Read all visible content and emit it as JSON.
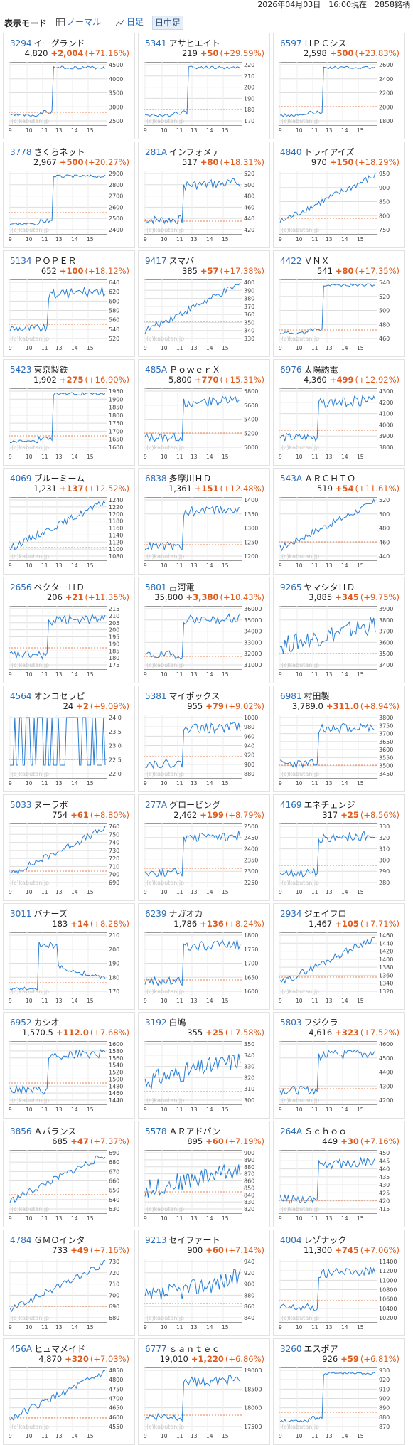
{
  "header": {
    "updated_text": "2026年04月03日　16:00現在　2858銘柄"
  },
  "toolbar": {
    "mode_label": "表示モード",
    "normal_label": "ノーマル",
    "daily_label": "日足",
    "intraday_label": "日中足"
  },
  "chart_watermark": "(c)kabutan.jp",
  "chart_time_labels": [
    "9",
    "10",
    "11",
    "13",
    "14",
    "15"
  ],
  "stocks": [
    {
      "code": "3294",
      "name": "イーグランド",
      "price": "4,820",
      "change": "+2,004",
      "pct": "(+71.16%)",
      "ticks": [
        "4500",
        "4000",
        "3500",
        "3000",
        "2500"
      ],
      "shape": "jump"
    },
    {
      "code": "5341",
      "name": "アサヒエイト",
      "price": "219",
      "change": "+50",
      "pct": "(+29.59%)",
      "ticks": [
        "220",
        "210",
        "200",
        "190",
        "180",
        "170"
      ],
      "shape": "jump"
    },
    {
      "code": "6597",
      "name": "ＨＰＣシス",
      "price": "2,598",
      "change": "+500",
      "pct": "(+23.83%)",
      "ticks": [
        "2600",
        "2400",
        "2200",
        "2000",
        "1800"
      ],
      "shape": "jump"
    },
    {
      "code": "3778",
      "name": "さくらネット",
      "price": "2,967",
      "change": "+500",
      "pct": "(+20.27%)",
      "ticks": [
        "2900",
        "2800",
        "2700",
        "2600",
        "2500",
        "2400"
      ],
      "shape": "jump"
    },
    {
      "code": "281A",
      "name": "インフォメテ",
      "price": "517",
      "change": "+80",
      "pct": "(+18.31%)",
      "ticks": [
        "520",
        "500",
        "480",
        "460",
        "440",
        "420"
      ],
      "shape": "rise"
    },
    {
      "code": "4840",
      "name": "トライアイズ",
      "price": "970",
      "change": "+150",
      "pct": "(+18.29%)",
      "ticks": [
        "950",
        "900",
        "850",
        "800",
        "750"
      ],
      "shape": "climb"
    },
    {
      "code": "5134",
      "name": "ＰＯＰＥＲ",
      "price": "652",
      "change": "+100",
      "pct": "(+18.12%)",
      "ticks": [
        "640",
        "620",
        "600",
        "580",
        "560",
        "540",
        "520"
      ],
      "shape": "rise"
    },
    {
      "code": "9417",
      "name": "スマバ",
      "price": "385",
      "change": "+57",
      "pct": "(+17.38%)",
      "ticks": [
        "400",
        "390",
        "380",
        "370",
        "360",
        "350",
        "340",
        "330"
      ],
      "shape": "climb"
    },
    {
      "code": "4422",
      "name": "ＶＮＸ",
      "price": "541",
      "change": "+80",
      "pct": "(+17.35%)",
      "ticks": [
        "540",
        "520",
        "500",
        "480",
        "460"
      ],
      "shape": "jump"
    },
    {
      "code": "5423",
      "name": "東京製鉄",
      "price": "1,902",
      "change": "+275",
      "pct": "(+16.90%)",
      "ticks": [
        "1950",
        "1900",
        "1850",
        "1800",
        "1750",
        "1700",
        "1650",
        "1600"
      ],
      "shape": "jump"
    },
    {
      "code": "485A",
      "name": "ＰｏｗｅｒＸ",
      "price": "5,800",
      "change": "+770",
      "pct": "(+15.31%)",
      "ticks": [
        "5800",
        "5600",
        "5400",
        "5200",
        "5000"
      ],
      "shape": "rise"
    },
    {
      "code": "6976",
      "name": "太陽誘電",
      "price": "4,360",
      "change": "+499",
      "pct": "(+12.92%)",
      "ticks": [
        "4300",
        "4200",
        "4100",
        "4000",
        "3900",
        "3800"
      ],
      "shape": "rise"
    },
    {
      "code": "4069",
      "name": "ブルーミーム",
      "price": "1,231",
      "change": "+137",
      "pct": "(+12.52%)",
      "ticks": [
        "1240",
        "1220",
        "1200",
        "1180",
        "1160",
        "1140",
        "1120",
        "1100",
        "1080"
      ],
      "shape": "climb"
    },
    {
      "code": "6838",
      "name": "多摩川ＨＤ",
      "price": "1,361",
      "change": "+151",
      "pct": "(+12.48%)",
      "ticks": [
        "1400",
        "1350",
        "1300",
        "1250",
        "1200"
      ],
      "shape": "rise"
    },
    {
      "code": "543A",
      "name": "ＡＲＣＨＩＯ",
      "price": "519",
      "change": "+54",
      "pct": "(+11.61%)",
      "ticks": [
        "520",
        "500",
        "480",
        "460",
        "440"
      ],
      "shape": "climb"
    },
    {
      "code": "2656",
      "name": "ベクターＨＤ",
      "price": "206",
      "change": "+21",
      "pct": "(+11.35%)",
      "ticks": [
        "215",
        "210",
        "205",
        "200",
        "195",
        "190",
        "185",
        "180",
        "175"
      ],
      "shape": "rise"
    },
    {
      "code": "5801",
      "name": "古河電",
      "price": "35,800",
      "change": "+3,380",
      "pct": "(+10.43%)",
      "ticks": [
        "36000",
        "35000",
        "34000",
        "33000",
        "32000",
        "31000"
      ],
      "shape": "rise"
    },
    {
      "code": "9265",
      "name": "ヤマシタＨＤ",
      "price": "3,885",
      "change": "+345",
      "pct": "(+9.75%)",
      "ticks": [
        "3900",
        "3800",
        "3700",
        "3600",
        "3500",
        "3400"
      ],
      "shape": "spiky"
    },
    {
      "code": "4564",
      "name": "オンコセラピ",
      "price": "24",
      "change": "+2",
      "pct": "(+9.09%)",
      "ticks": [
        "24.0",
        "23.5",
        "23.0",
        "22.5",
        "22.0"
      ],
      "shape": "bars"
    },
    {
      "code": "5381",
      "name": "マイポックス",
      "price": "955",
      "change": "+79",
      "pct": "(+9.02%)",
      "ticks": [
        "1000",
        "980",
        "960",
        "940",
        "920",
        "900",
        "880"
      ],
      "shape": "rise"
    },
    {
      "code": "6981",
      "name": "村田製",
      "price": "3,789.0",
      "change": "+311.0",
      "pct": "(+8.94%)",
      "ticks": [
        "3800",
        "3750",
        "3700",
        "3650",
        "3600",
        "3550",
        "3500",
        "3450"
      ],
      "shape": "rise"
    },
    {
      "code": "5033",
      "name": "ヌーラボ",
      "price": "754",
      "change": "+61",
      "pct": "(+8.80%)",
      "ticks": [
        "760",
        "750",
        "740",
        "730",
        "720",
        "710",
        "700",
        "690"
      ],
      "shape": "climb"
    },
    {
      "code": "277A",
      "name": "グロービング",
      "price": "2,462",
      "change": "+199",
      "pct": "(+8.79%)",
      "ticks": [
        "2500",
        "2450",
        "2400",
        "2350",
        "2300",
        "2250"
      ],
      "shape": "rise"
    },
    {
      "code": "4169",
      "name": "エネチェンジ",
      "price": "317",
      "change": "+25",
      "pct": "(+8.56%)",
      "ticks": [
        "330",
        "320",
        "310",
        "300",
        "290",
        "280"
      ],
      "shape": "rise"
    },
    {
      "code": "3011",
      "name": "バナーズ",
      "price": "183",
      "change": "+14",
      "pct": "(+8.28%)",
      "ticks": [
        "210",
        "200",
        "190",
        "180",
        "170"
      ],
      "shape": "spikefall"
    },
    {
      "code": "6239",
      "name": "ナガオカ",
      "price": "1,786",
      "change": "+136",
      "pct": "(+8.24%)",
      "ticks": [
        "1800",
        "1750",
        "1700",
        "1650",
        "1600"
      ],
      "shape": "rise"
    },
    {
      "code": "2934",
      "name": "ジェイフロ",
      "price": "1,467",
      "change": "+105",
      "pct": "(+7.71%)",
      "ticks": [
        "1460",
        "1440",
        "1420",
        "1400",
        "1380",
        "1360",
        "1340",
        "1320"
      ],
      "shape": "climb"
    },
    {
      "code": "6952",
      "name": "カシオ",
      "price": "1,570.5",
      "change": "+112.0",
      "pct": "(+7.68%)",
      "ticks": [
        "1600",
        "1580",
        "1560",
        "1540",
        "1520",
        "1500",
        "1480",
        "1460",
        "1440"
      ],
      "shape": "rise"
    },
    {
      "code": "3192",
      "name": "白鳩",
      "price": "355",
      "change": "+25",
      "pct": "(+7.58%)",
      "ticks": [
        "350",
        "340",
        "330",
        "320",
        "310",
        "300"
      ],
      "shape": "spiky"
    },
    {
      "code": "5803",
      "name": "フジクラ",
      "price": "4,616",
      "change": "+323",
      "pct": "(+7.52%)",
      "ticks": [
        "4600",
        "4500",
        "4400",
        "4300",
        "4200"
      ],
      "shape": "rise"
    },
    {
      "code": "3856",
      "name": "Ａバランス",
      "price": "685",
      "change": "+47",
      "pct": "(+7.37%)",
      "ticks": [
        "690",
        "680",
        "670",
        "660",
        "650",
        "640",
        "630"
      ],
      "shape": "climb"
    },
    {
      "code": "5578",
      "name": "ＡＲアドバン",
      "price": "895",
      "change": "+60",
      "pct": "(+7.19%)",
      "ticks": [
        "900",
        "890",
        "880",
        "870",
        "860",
        "850",
        "840",
        "830",
        "820"
      ],
      "shape": "spiky"
    },
    {
      "code": "264A",
      "name": "Ｓｃｈｏｏ",
      "price": "449",
      "change": "+30",
      "pct": "(+7.16%)",
      "ticks": [
        "450",
        "445",
        "440",
        "435",
        "430",
        "425",
        "420",
        "415"
      ],
      "shape": "rise"
    },
    {
      "code": "4784",
      "name": "ＧＭＯインタ",
      "price": "733",
      "change": "+49",
      "pct": "(+7.16%)",
      "ticks": [
        "730",
        "720",
        "710",
        "700",
        "690",
        "680"
      ],
      "shape": "climb"
    },
    {
      "code": "9213",
      "name": "セイファート",
      "price": "900",
      "change": "+60",
      "pct": "(+7.14%)",
      "ticks": [
        "940",
        "920",
        "900",
        "880",
        "860",
        "840"
      ],
      "shape": "spiky"
    },
    {
      "code": "4004",
      "name": "レゾナック",
      "price": "11,300",
      "change": "+745",
      "pct": "(+7.06%)",
      "ticks": [
        "11400",
        "11200",
        "11000",
        "10800",
        "10600",
        "10400",
        "10200"
      ],
      "shape": "rise"
    },
    {
      "code": "456A",
      "name": "ヒュマメイド",
      "price": "4,870",
      "change": "+320",
      "pct": "(+7.03%)",
      "ticks": [
        "4850",
        "4800",
        "4750",
        "4700",
        "4650",
        "4600",
        "4550"
      ],
      "shape": "climb"
    },
    {
      "code": "6777",
      "name": "ｓａｎｔｅｃ",
      "price": "19,010",
      "change": "+1,220",
      "pct": "(+6.86%)",
      "ticks": [
        "19000",
        "18500",
        "18000",
        "17500"
      ],
      "shape": "rise"
    },
    {
      "code": "3260",
      "name": "エスポア",
      "price": "926",
      "change": "+59",
      "pct": "(+6.81%)",
      "ticks": [
        "930",
        "920",
        "910",
        "900",
        "890",
        "880",
        "870"
      ],
      "shape": "jump"
    }
  ]
}
